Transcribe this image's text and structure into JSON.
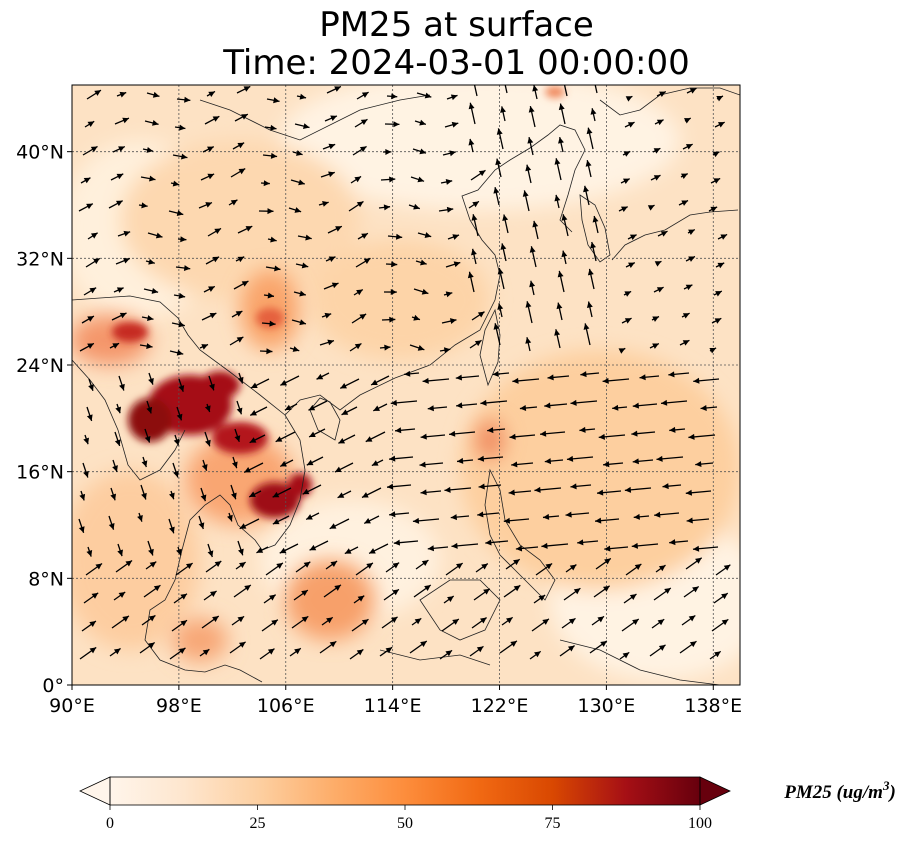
{
  "title": "PM25 at surface",
  "subtitle": "Time: 2024-03-01 00:00:00",
  "map": {
    "lon_range": [
      90,
      140
    ],
    "lat_range": [
      0,
      45
    ],
    "lon_ticks": [
      {
        "value": 90,
        "label": "90°E"
      },
      {
        "value": 98,
        "label": "98°E"
      },
      {
        "value": 106,
        "label": "106°E"
      },
      {
        "value": 114,
        "label": "114°E"
      },
      {
        "value": 122,
        "label": "122°E"
      },
      {
        "value": 130,
        "label": "130°E"
      },
      {
        "value": 138,
        "label": "138°E"
      }
    ],
    "lat_ticks": [
      {
        "value": 0,
        "label": "0°"
      },
      {
        "value": 8,
        "label": "8°N"
      },
      {
        "value": 16,
        "label": "16°N"
      },
      {
        "value": 24,
        "label": "24°N"
      },
      {
        "value": 32,
        "label": "32°N"
      },
      {
        "value": 40,
        "label": "40°N"
      }
    ],
    "gridlines": true
  },
  "colorbar": {
    "title": "PM25 (ug/m",
    "title_sup": "3",
    "title_close": ")",
    "min": 0,
    "max": 100,
    "ticks": [
      {
        "value": 0,
        "label": "0"
      },
      {
        "value": 25,
        "label": "25"
      },
      {
        "value": 50,
        "label": "50"
      },
      {
        "value": 75,
        "label": "75"
      },
      {
        "value": 100,
        "label": "100"
      }
    ],
    "colors": [
      "#fff5eb",
      "#fee6ce",
      "#fdd0a2",
      "#fdae6b",
      "#fd8d3c",
      "#f16913",
      "#d94801",
      "#a50f15",
      "#67000d"
    ]
  }
}
